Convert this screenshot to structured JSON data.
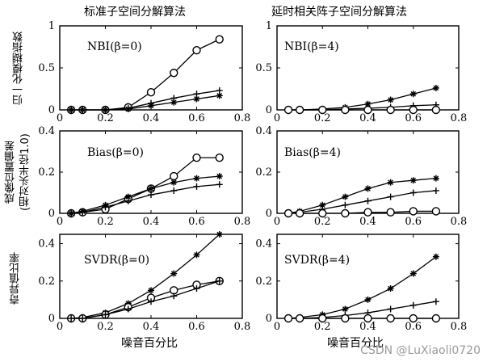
{
  "figure": {
    "left_title": "标准子空间分解算法",
    "right_title": "延时相关阵子空间分解算法",
    "row_labels": [
      "归一化模糊指数",
      "成像位置偏差",
      "(相对头半径1.0)",
      "奇异值比率"
    ],
    "xlabel": "噪音百分比",
    "watermark": "CSDN @LuXiaoli0720"
  },
  "chart_data": [
    {
      "type": "line",
      "panel": "top-left",
      "annotation": "NBI(β=0)",
      "x": [
        0.05,
        0.1,
        0.2,
        0.3,
        0.4,
        0.5,
        0.6,
        0.7
      ],
      "xlim": [
        0,
        0.8
      ],
      "xticks": [
        0,
        0.2,
        0.4,
        0.6,
        0.8
      ],
      "ylim": [
        0,
        1
      ],
      "yticks": [
        0,
        0.5,
        1
      ],
      "series": [
        {
          "marker": "circle",
          "values": [
            0.0,
            0.0,
            0.0,
            0.03,
            0.21,
            0.44,
            0.71,
            0.84
          ]
        },
        {
          "marker": "plus",
          "values": [
            0.0,
            0.0,
            0.0,
            0.02,
            0.08,
            0.14,
            0.19,
            0.23
          ]
        },
        {
          "marker": "star",
          "values": [
            0.0,
            0.0,
            0.0,
            0.01,
            0.05,
            0.09,
            0.13,
            0.17
          ]
        }
      ]
    },
    {
      "type": "line",
      "panel": "top-right",
      "annotation": "NBI(β=4)",
      "x": [
        0.05,
        0.1,
        0.2,
        0.3,
        0.4,
        0.5,
        0.6,
        0.7
      ],
      "xlim": [
        0,
        0.8
      ],
      "xticks": [
        0,
        0.2,
        0.4,
        0.6,
        0.8
      ],
      "ylim": [
        0,
        1
      ],
      "yticks": [
        0,
        0.5,
        1
      ],
      "series": [
        {
          "marker": "star",
          "values": [
            0.0,
            0.0,
            0.01,
            0.03,
            0.07,
            0.12,
            0.19,
            0.26
          ]
        },
        {
          "marker": "plus",
          "values": [
            0.0,
            0.0,
            0.0,
            0.01,
            0.02,
            0.03,
            0.05,
            0.06
          ]
        },
        {
          "marker": "circle",
          "values": [
            0.0,
            0.0,
            0.0,
            0.0,
            0.0,
            0.0,
            0.0,
            0.0
          ]
        }
      ]
    },
    {
      "type": "line",
      "panel": "middle-left",
      "annotation": "Bias(β=0)",
      "x": [
        0.05,
        0.1,
        0.2,
        0.3,
        0.4,
        0.5,
        0.6,
        0.7
      ],
      "xlim": [
        0,
        0.8
      ],
      "xticks": [
        0,
        0.2,
        0.4,
        0.6,
        0.8
      ],
      "ylim": [
        0,
        0.4
      ],
      "yticks": [
        0,
        0.2,
        0.4
      ],
      "series": [
        {
          "marker": "circle",
          "values": [
            0.0,
            0.005,
            0.02,
            0.07,
            0.12,
            0.18,
            0.27,
            0.27
          ]
        },
        {
          "marker": "star",
          "values": [
            0.0,
            0.01,
            0.04,
            0.08,
            0.12,
            0.15,
            0.17,
            0.18
          ]
        },
        {
          "marker": "plus",
          "values": [
            0.0,
            0.005,
            0.03,
            0.06,
            0.09,
            0.11,
            0.13,
            0.14
          ]
        }
      ]
    },
    {
      "type": "line",
      "panel": "middle-right",
      "annotation": "Bias(β=4)",
      "x": [
        0.05,
        0.1,
        0.2,
        0.3,
        0.4,
        0.5,
        0.6,
        0.7
      ],
      "xlim": [
        0,
        0.8
      ],
      "xticks": [
        0,
        0.2,
        0.4,
        0.6,
        0.8
      ],
      "ylim": [
        0,
        0.4
      ],
      "yticks": [
        0,
        0.2,
        0.4
      ],
      "series": [
        {
          "marker": "star",
          "values": [
            0.0,
            0.01,
            0.04,
            0.08,
            0.12,
            0.15,
            0.16,
            0.17
          ]
        },
        {
          "marker": "plus",
          "values": [
            0.0,
            0.005,
            0.02,
            0.04,
            0.06,
            0.08,
            0.1,
            0.11
          ]
        },
        {
          "marker": "circle",
          "values": [
            0.0,
            0.0,
            0.0,
            0.0,
            0.005,
            0.005,
            0.01,
            0.01
          ]
        }
      ]
    },
    {
      "type": "line",
      "panel": "bottom-left",
      "annotation": "SVDR(β=0)",
      "x": [
        0.05,
        0.1,
        0.2,
        0.3,
        0.4,
        0.5,
        0.6,
        0.7
      ],
      "xlim": [
        0,
        0.8
      ],
      "xticks": [
        0,
        0.2,
        0.4,
        0.6,
        0.8
      ],
      "ylim": [
        0,
        0.45
      ],
      "yticks": [
        0,
        0.2,
        0.4
      ],
      "series": [
        {
          "marker": "star",
          "values": [
            0.0,
            0.005,
            0.03,
            0.08,
            0.15,
            0.24,
            0.34,
            0.45
          ]
        },
        {
          "marker": "circle",
          "values": [
            0.0,
            0.0,
            0.02,
            0.06,
            0.11,
            0.15,
            0.18,
            0.2
          ]
        },
        {
          "marker": "plus",
          "values": [
            0.0,
            0.0,
            0.02,
            0.05,
            0.09,
            0.12,
            0.16,
            0.2
          ]
        }
      ]
    },
    {
      "type": "line",
      "panel": "bottom-right",
      "annotation": "SVDR(β=4)",
      "x": [
        0.05,
        0.1,
        0.2,
        0.3,
        0.4,
        0.5,
        0.6,
        0.7
      ],
      "xlim": [
        0,
        0.8
      ],
      "xticks": [
        0,
        0.2,
        0.4,
        0.6,
        0.8
      ],
      "ylim": [
        0,
        0.45
      ],
      "yticks": [
        0,
        0.2,
        0.4
      ],
      "series": [
        {
          "marker": "star",
          "values": [
            0.0,
            0.005,
            0.02,
            0.05,
            0.1,
            0.16,
            0.24,
            0.33
          ]
        },
        {
          "marker": "plus",
          "values": [
            0.0,
            0.0,
            0.005,
            0.015,
            0.03,
            0.05,
            0.07,
            0.09
          ]
        },
        {
          "marker": "circle",
          "values": [
            0.0,
            0.0,
            0.0,
            0.0,
            0.0,
            0.0,
            0.0,
            0.0
          ]
        }
      ]
    }
  ]
}
